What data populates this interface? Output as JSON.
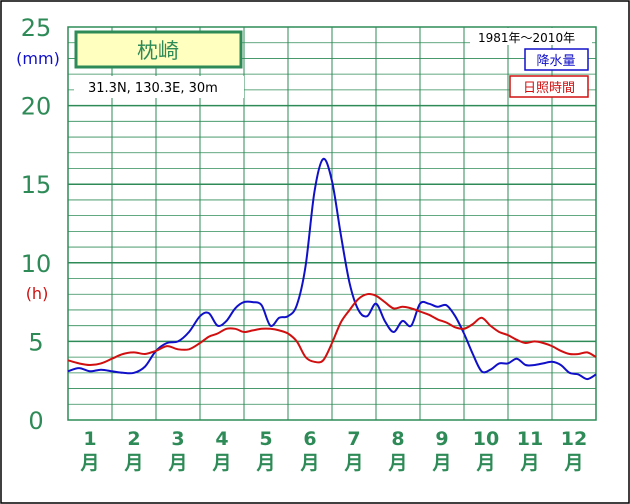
{
  "chart_data": {
    "type": "line",
    "title": "枕崎",
    "location": "31.3N,  130.3E,  30m",
    "period": "1981年～2010年",
    "unit_precip": "(mm)",
    "unit_sun": "(h)",
    "y_ticks": [
      "0",
      "5",
      "10",
      "15",
      "20",
      "25"
    ],
    "ylim": [
      0,
      25
    ],
    "xlim": [
      0,
      12
    ],
    "grid": true,
    "legend_position": "top-right",
    "months": [
      "1",
      "2",
      "3",
      "4",
      "5",
      "6",
      "7",
      "8",
      "9",
      "10",
      "11",
      "12"
    ],
    "month_suffix": "月",
    "colors": {
      "grid": "#2e8b57",
      "axis_text": "#2e8b57",
      "precip": "#1010c8",
      "sun": "#d01010",
      "title_bg": "#ffffc0",
      "title_border": "#2e8b57",
      "title_text": "#2e8b57"
    },
    "series": [
      {
        "name": "降水量",
        "color": "#1010c8",
        "x": [
          0,
          0.25,
          0.5,
          0.75,
          1.0,
          1.25,
          1.5,
          1.75,
          2.0,
          2.25,
          2.5,
          2.75,
          3.0,
          3.2,
          3.4,
          3.6,
          3.8,
          4.0,
          4.2,
          4.4,
          4.6,
          4.8,
          5.0,
          5.2,
          5.4,
          5.6,
          5.8,
          6.0,
          6.2,
          6.4,
          6.6,
          6.8,
          7.0,
          7.2,
          7.4,
          7.6,
          7.8,
          8.0,
          8.2,
          8.4,
          8.6,
          8.8,
          9.0,
          9.2,
          9.4,
          9.6,
          9.8,
          10.0,
          10.2,
          10.4,
          10.6,
          10.8,
          11.0,
          11.2,
          11.4,
          11.6,
          11.8,
          12.0
        ],
        "values": [
          3.1,
          3.3,
          3.1,
          3.2,
          3.1,
          3.0,
          3.0,
          3.4,
          4.4,
          4.9,
          5.0,
          5.6,
          6.6,
          6.8,
          6.0,
          6.3,
          7.1,
          7.5,
          7.5,
          7.3,
          6.0,
          6.5,
          6.6,
          7.3,
          9.8,
          14.5,
          16.6,
          15.2,
          11.8,
          8.7,
          7.0,
          6.6,
          7.4,
          6.3,
          5.6,
          6.3,
          6.0,
          7.4,
          7.4,
          7.2,
          7.3,
          6.6,
          5.5,
          4.2,
          3.1,
          3.2,
          3.6,
          3.6,
          3.9,
          3.5,
          3.5,
          3.6,
          3.7,
          3.5,
          3.0,
          2.9,
          2.6,
          2.9
        ]
      },
      {
        "name": "日照時間",
        "color": "#d01010",
        "x": [
          0,
          0.25,
          0.5,
          0.75,
          1.0,
          1.25,
          1.5,
          1.75,
          2.0,
          2.25,
          2.5,
          2.75,
          3.0,
          3.2,
          3.4,
          3.6,
          3.8,
          4.0,
          4.2,
          4.4,
          4.6,
          4.8,
          5.0,
          5.2,
          5.4,
          5.6,
          5.8,
          6.0,
          6.2,
          6.4,
          6.6,
          6.8,
          7.0,
          7.2,
          7.4,
          7.6,
          7.8,
          8.0,
          8.2,
          8.4,
          8.6,
          8.8,
          9.0,
          9.2,
          9.4,
          9.6,
          9.8,
          10.0,
          10.2,
          10.4,
          10.6,
          10.8,
          11.0,
          11.2,
          11.4,
          11.6,
          11.8,
          12.0
        ],
        "values": [
          3.8,
          3.6,
          3.5,
          3.6,
          3.9,
          4.2,
          4.3,
          4.2,
          4.4,
          4.7,
          4.5,
          4.5,
          4.9,
          5.3,
          5.5,
          5.8,
          5.8,
          5.6,
          5.7,
          5.8,
          5.8,
          5.7,
          5.5,
          5.0,
          4.0,
          3.7,
          3.8,
          4.9,
          6.2,
          7.0,
          7.7,
          8.0,
          7.9,
          7.5,
          7.1,
          7.2,
          7.1,
          6.9,
          6.7,
          6.4,
          6.2,
          5.9,
          5.8,
          6.1,
          6.5,
          6.0,
          5.6,
          5.4,
          5.1,
          4.9,
          5.0,
          4.9,
          4.7,
          4.4,
          4.2,
          4.2,
          4.3,
          4.0
        ]
      }
    ]
  }
}
